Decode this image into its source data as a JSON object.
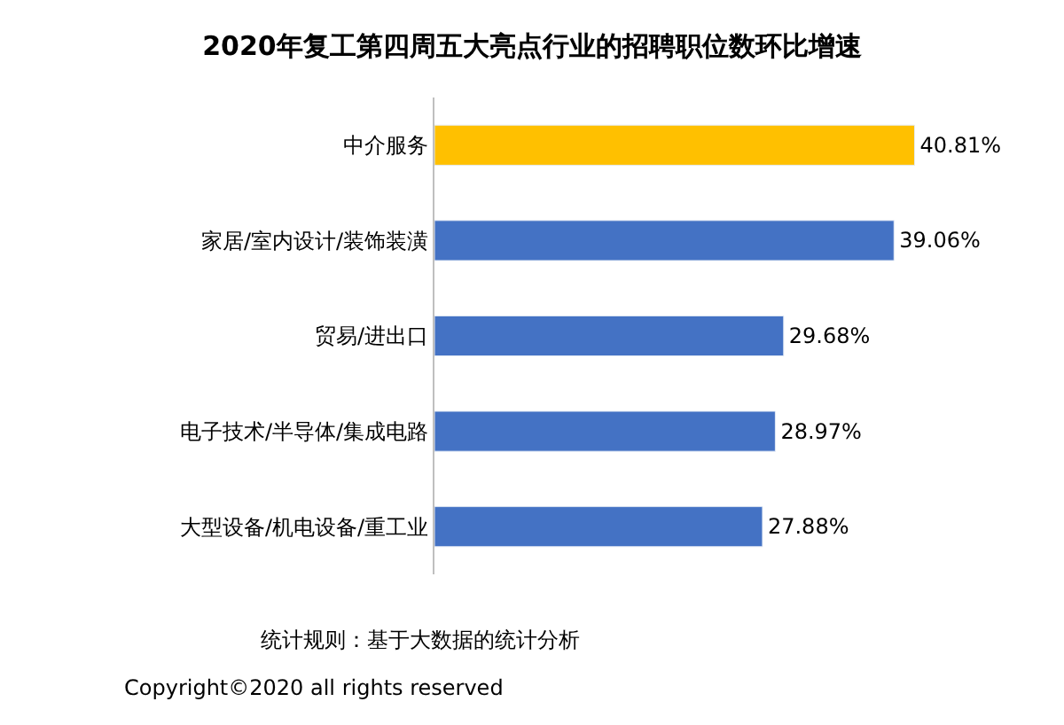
{
  "chart_data": {
    "type": "bar",
    "orientation": "horizontal",
    "title": "2020年复工第四周五大亮点行业的招聘职位数环比增速",
    "categories": [
      "中介服务",
      "家居/室内设计/装饰装潢",
      "贸易/进出口",
      "电子技术/半导体/集成电路",
      "大型设备/机电设备/重工业"
    ],
    "values": [
      40.81,
      39.06,
      29.68,
      28.97,
      27.88
    ],
    "colors": [
      "#ffc000",
      "#4472c4",
      "#4472c4",
      "#4472c4",
      "#4472c4"
    ],
    "value_labels": [
      "40.81%",
      "39.06%",
      "29.68%",
      "28.97%",
      "27.88%"
    ],
    "annotations": [
      "统计规则：基于大数据的统计分析",
      "Copyright©2020 all rights reserved"
    ]
  }
}
